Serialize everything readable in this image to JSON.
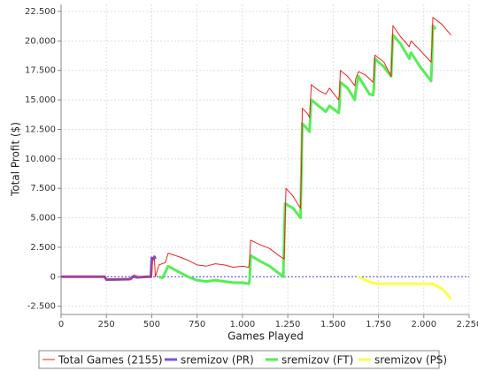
{
  "chart_data": {
    "type": "line",
    "xlabel": "Games Played",
    "ylabel": "Total Profit ($)",
    "xlim": [
      0,
      2250
    ],
    "xticks": [
      0,
      250,
      500,
      750,
      {
        "value": 1000,
        "label": "1.000"
      },
      {
        "value": 1250,
        "label": "1.250"
      },
      {
        "value": 1500,
        "label": "1.500"
      },
      {
        "value": 1750,
        "label": "1.750"
      },
      {
        "value": 2000,
        "label": "2.000"
      },
      {
        "value": 2250,
        "label": "2.250"
      }
    ],
    "ylim": [
      -3200,
      23100
    ],
    "yticks": [
      {
        "value": -2500,
        "label": "-2.500"
      },
      0,
      {
        "value": 2500,
        "label": "2.500"
      },
      {
        "value": 5000,
        "label": "5.000"
      },
      {
        "value": 7500,
        "label": "7.500"
      },
      {
        "value": 10000,
        "label": "10.000"
      },
      {
        "value": 12500,
        "label": "12.500"
      },
      {
        "value": 15000,
        "label": "15.000"
      },
      {
        "value": 17500,
        "label": "17.500"
      },
      {
        "value": 20000,
        "label": "20.000"
      },
      {
        "value": 22500,
        "label": "22.500"
      }
    ],
    "grid": true,
    "markers": [
      0
    ],
    "legend": "bottom",
    "series": [
      {
        "name": "Total Games (2155)",
        "color": "#ee2222",
        "width": 1,
        "x": [
          0,
          240,
          250,
          390,
          400,
          430,
          500,
          505,
          515,
          520,
          540,
          575,
          590,
          650,
          700,
          750,
          800,
          850,
          900,
          950,
          1000,
          1035,
          1040,
          1045,
          1100,
          1150,
          1200,
          1230,
          1235,
          1240,
          1280,
          1320,
          1325,
          1330,
          1360,
          1370,
          1380,
          1420,
          1460,
          1480,
          1530,
          1535,
          1540,
          1580,
          1620,
          1625,
          1640,
          1680,
          1720,
          1725,
          1730,
          1780,
          1820,
          1825,
          1830,
          1870,
          1920,
          1925,
          1930,
          1980,
          2040,
          2045,
          2050,
          2100,
          2150
        ],
        "values": [
          0,
          0,
          -250,
          -200,
          150,
          0,
          0,
          1600,
          1500,
          0,
          1000,
          1200,
          2000,
          1700,
          1400,
          1000,
          900,
          1100,
          1000,
          800,
          900,
          800,
          1600,
          3100,
          2700,
          2400,
          1800,
          1500,
          4500,
          7500,
          6800,
          5800,
          9000,
          14300,
          13800,
          13500,
          16300,
          15800,
          15500,
          16000,
          15000,
          15500,
          17500,
          17000,
          16200,
          16800,
          17400,
          17100,
          16500,
          17000,
          18800,
          18200,
          17000,
          19000,
          21300,
          20400,
          19500,
          19800,
          20000,
          19200,
          18200,
          19500,
          22000,
          21400,
          20500
        ]
      },
      {
        "name": "sremizov (PR)",
        "color": "#7755dd",
        "width": 3,
        "x": [
          0,
          240,
          250,
          380,
          395,
          420,
          480,
          495,
          500,
          510,
          515,
          520
        ],
        "values": [
          0,
          0,
          -250,
          -200,
          0,
          -50,
          0,
          0,
          1600,
          1500,
          1700,
          1500
        ]
      },
      {
        "name": "sremizov (FT)",
        "color": "#55ee55",
        "width": 3,
        "x": [
          540,
          560,
          590,
          650,
          700,
          750,
          800,
          850,
          900,
          950,
          1000,
          1035,
          1040,
          1045,
          1100,
          1150,
          1200,
          1225,
          1230,
          1235,
          1280,
          1320,
          1325,
          1330,
          1360,
          1370,
          1380,
          1420,
          1460,
          1480,
          1530,
          1535,
          1540,
          1580,
          1620,
          1625,
          1640,
          1680,
          1700,
          1720,
          1725,
          1730,
          1780,
          1820,
          1825,
          1830,
          1870,
          1920,
          1925,
          1930,
          1980,
          2040,
          2045,
          2050,
          2065
        ],
        "values": [
          0,
          -100,
          900,
          400,
          0,
          -300,
          -400,
          -300,
          -400,
          -500,
          -500,
          -600,
          -200,
          1800,
          1300,
          900,
          300,
          0,
          3000,
          6200,
          5800,
          5000,
          9000,
          13000,
          12500,
          12300,
          15000,
          14500,
          14000,
          14500,
          13900,
          14500,
          16500,
          16000,
          15000,
          15800,
          17000,
          16000,
          15500,
          15400,
          16000,
          18500,
          17800,
          17000,
          19000,
          20500,
          19800,
          18500,
          18800,
          19000,
          17800,
          16600,
          18500,
          21300,
          21000
        ]
      },
      {
        "name": "sremizov (PS)",
        "color": "#ffff44",
        "width": 3,
        "x": [
          1640,
          1650,
          1680,
          1710,
          1750,
          1800,
          1900,
          2000,
          2050,
          2060,
          2100,
          2130,
          2150
        ],
        "values": [
          0,
          -100,
          -300,
          -500,
          -600,
          -600,
          -600,
          -600,
          -600,
          -700,
          -1000,
          -1500,
          -1900
        ]
      }
    ]
  }
}
